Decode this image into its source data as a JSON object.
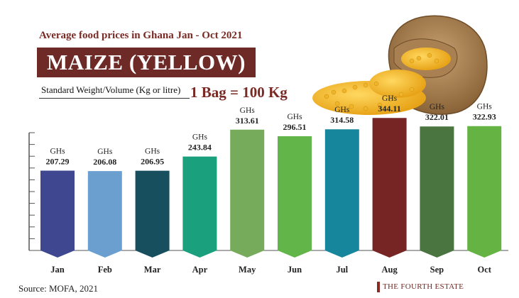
{
  "header": {
    "subtitle": "Average food prices in Ghana Jan - Oct 2021",
    "title": "MAIZE (YELLOW)",
    "standard_label": "Standard Weight/Volume (Kg or litre)",
    "bag_text": "1 Bag = 100 Kg"
  },
  "image": {
    "icon": "maize-sack-image"
  },
  "footer": {
    "source": "Source: MOFA, 2021",
    "brand": "THE FOURTH ESTATE"
  },
  "chart_data": {
    "type": "bar",
    "title": "MAIZE (YELLOW)",
    "categories": [
      "Jan",
      "Feb",
      "Mar",
      "Apr",
      "May",
      "Jun",
      "Jul",
      "Aug",
      "Sep",
      "Oct"
    ],
    "values": [
      207.29,
      206.08,
      206.95,
      243.84,
      313.61,
      296.51,
      314.58,
      344.11,
      322.01,
      322.93
    ],
    "value_labels": [
      "207.29",
      "206.08",
      "206.95",
      "243.84",
      "313.61",
      "296.51",
      "314.58",
      "344.11",
      "322.01",
      "322.93"
    ],
    "unit_label": "GHs",
    "colors": [
      "#3f4791",
      "#6a9fcf",
      "#174f5f",
      "#1aa07c",
      "#75ab5a",
      "#62b548",
      "#16869c",
      "#762424",
      "#4a7440",
      "#64b343"
    ],
    "ylim": [
      0,
      350
    ],
    "grid": false,
    "legend": "none"
  }
}
